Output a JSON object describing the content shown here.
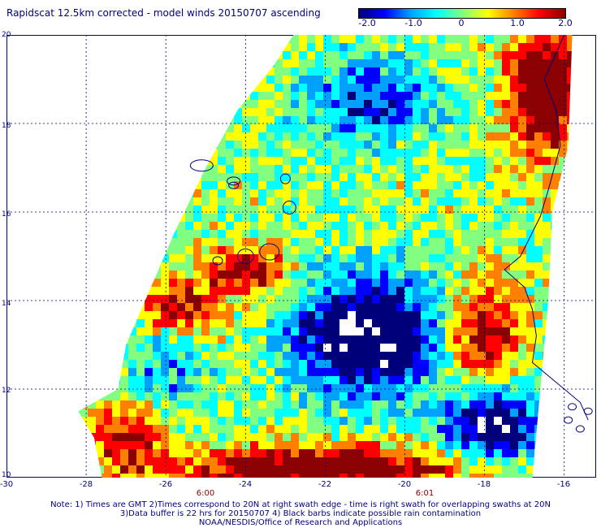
{
  "title": "Rapidscat 12.5km corrected - model winds 20150707 ascending",
  "colorbar": {
    "labels": [
      "-2.0",
      "-1.0",
      "0",
      "1.0",
      "2.0"
    ],
    "range": [
      -2.0,
      2.0
    ],
    "colors": [
      "#00007a",
      "#0000ff",
      "#00a0ff",
      "#00ffff",
      "#80ff80",
      "#ffff00",
      "#ff8000",
      "#ff0000",
      "#8b0000"
    ]
  },
  "x_ticks": [
    "-30",
    "-28",
    "-26",
    "-24",
    "-22",
    "-20",
    "-18",
    "-16"
  ],
  "y_ticks": [
    "20",
    "18",
    "16",
    "14",
    "12",
    "10"
  ],
  "axes": {
    "lon_range": [
      -30,
      -15.2
    ],
    "lat_range": [
      10,
      20
    ]
  },
  "swath_times": [
    {
      "label": "6:00",
      "lon": -25.2
    },
    {
      "label": "6:01",
      "lon": -19.2
    }
  ],
  "notes": [
    "Note: 1) Times are GMT 2)Times correspond to 20N at right swath edge - time is right swath for overlapping swaths at 20N",
    "3)Data buffer is 22 hrs for 20150707 4) Black barbs indicate possible rain contamination",
    "NOAA/NESDIS/Office of Research and Applications"
  ],
  "map": {
    "grid": true,
    "coastline_color": "#000080",
    "regions": [
      {
        "name": "swath-tongue-orange",
        "color": "#ff8c00",
        "lon": -27.0,
        "lat": 10.8
      },
      {
        "name": "bottom-dark-red-band",
        "color": "#8b0000",
        "lon": -22.0,
        "lat": 10.3
      },
      {
        "name": "central-low-wind-blue",
        "color": "#0000cc",
        "lon": -21.0,
        "lat": 13.2
      },
      {
        "name": "northeast-dark-red",
        "color": "#8b0000",
        "lon": -16.5,
        "lat": 19.0
      }
    ]
  }
}
